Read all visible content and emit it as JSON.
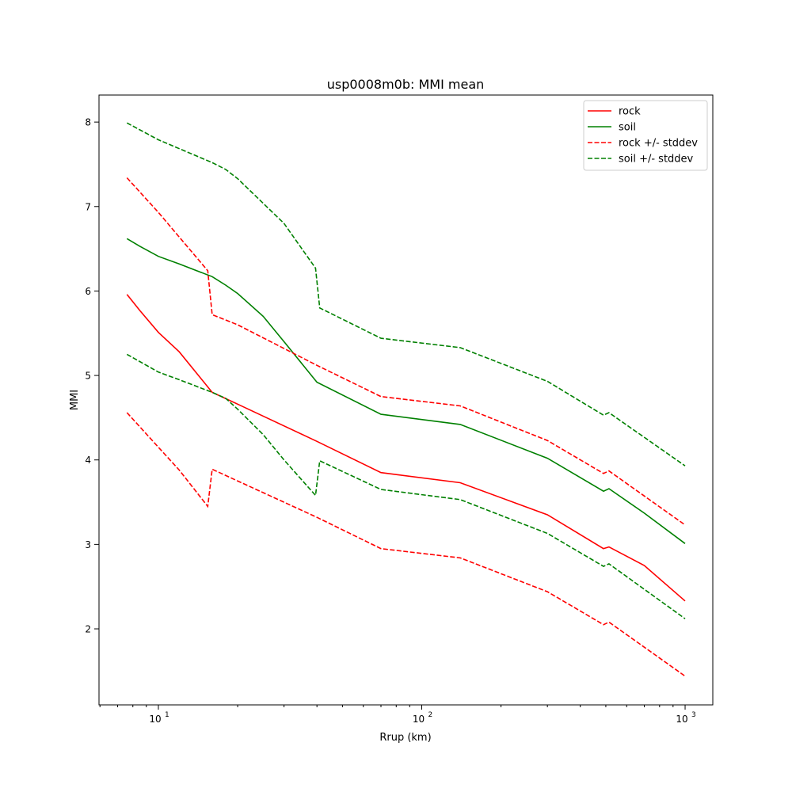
{
  "chart_data": {
    "type": "line",
    "title": "usp0008m0b: MMI mean",
    "xlabel": "Rrup (km)",
    "ylabel": "MMI",
    "xscale": "log",
    "xlim": [
      5.95,
      1274
    ],
    "ylim": [
      1.1,
      8.32
    ],
    "xticks": [
      {
        "value": 10,
        "base": "10",
        "exp": "1"
      },
      {
        "value": 100,
        "base": "10",
        "exp": "2"
      },
      {
        "value": 1000,
        "base": "10",
        "exp": "3"
      }
    ],
    "yticks": [
      2,
      3,
      4,
      5,
      6,
      7,
      8
    ],
    "ytick_labels": [
      "2",
      "3",
      "4",
      "5",
      "6",
      "7",
      "8"
    ],
    "grid": false,
    "legend_position": "top-right",
    "series": [
      {
        "name": "rock",
        "color": "#ff0000",
        "style": "solid",
        "x": [
          7.6,
          8.5,
          10,
          12,
          16,
          20,
          40,
          70,
          140,
          300,
          490,
          514,
          700,
          1000
        ],
        "y": [
          5.96,
          5.77,
          5.51,
          5.28,
          4.8,
          4.66,
          4.22,
          3.85,
          3.73,
          3.35,
          2.95,
          2.97,
          2.75,
          2.33
        ]
      },
      {
        "name": "soil",
        "color": "#008000",
        "style": "solid",
        "x": [
          7.6,
          8.5,
          10,
          12,
          16,
          18,
          20,
          25,
          30,
          40,
          70,
          140,
          300,
          490,
          514,
          700,
          1000
        ],
        "y": [
          6.62,
          6.53,
          6.41,
          6.32,
          6.17,
          6.07,
          5.97,
          5.7,
          5.4,
          4.92,
          4.54,
          4.42,
          4.02,
          3.63,
          3.66,
          3.37,
          3.01
        ]
      },
      {
        "name": "rock +/- stddev",
        "color": "#ff0000",
        "style": "dashed",
        "x": [
          7.6,
          10,
          15.4,
          16,
          20,
          40,
          70,
          140,
          300,
          490,
          514,
          1000
        ],
        "y": [
          7.34,
          6.93,
          6.24,
          5.72,
          5.6,
          5.12,
          4.75,
          4.64,
          4.23,
          3.84,
          3.87,
          3.23
        ]
      },
      {
        "name": "rock +/- stddev (lower)",
        "legend": false,
        "color": "#ff0000",
        "style": "dashed",
        "x": [
          7.6,
          10,
          12,
          15.4,
          16,
          40,
          70,
          140,
          300,
          490,
          514,
          1000
        ],
        "y": [
          4.56,
          4.15,
          3.88,
          3.45,
          3.89,
          3.32,
          2.95,
          2.84,
          2.44,
          2.05,
          2.08,
          1.44
        ]
      },
      {
        "name": "soil +/- stddev",
        "color": "#008000",
        "style": "dashed",
        "x": [
          7.6,
          10,
          16,
          18,
          20,
          30,
          39.5,
          41,
          70,
          140,
          300,
          490,
          514,
          1000
        ],
        "y": [
          7.99,
          7.79,
          7.52,
          7.44,
          7.33,
          6.8,
          6.27,
          5.8,
          5.44,
          5.33,
          4.93,
          4.53,
          4.56,
          3.93
        ]
      },
      {
        "name": "soil +/- stddev (lower)",
        "legend": false,
        "color": "#008000",
        "style": "dashed",
        "x": [
          7.6,
          10,
          12,
          16,
          18,
          20,
          25,
          30,
          39.5,
          41,
          70,
          140,
          300,
          490,
          514,
          1000
        ],
        "y": [
          5.25,
          5.04,
          4.95,
          4.8,
          4.73,
          4.6,
          4.3,
          4.0,
          3.58,
          3.99,
          3.65,
          3.53,
          3.13,
          2.74,
          2.77,
          2.12
        ]
      }
    ],
    "legend": [
      "rock",
      "soil",
      "rock +/- stddev",
      "soil +/- stddev"
    ]
  }
}
